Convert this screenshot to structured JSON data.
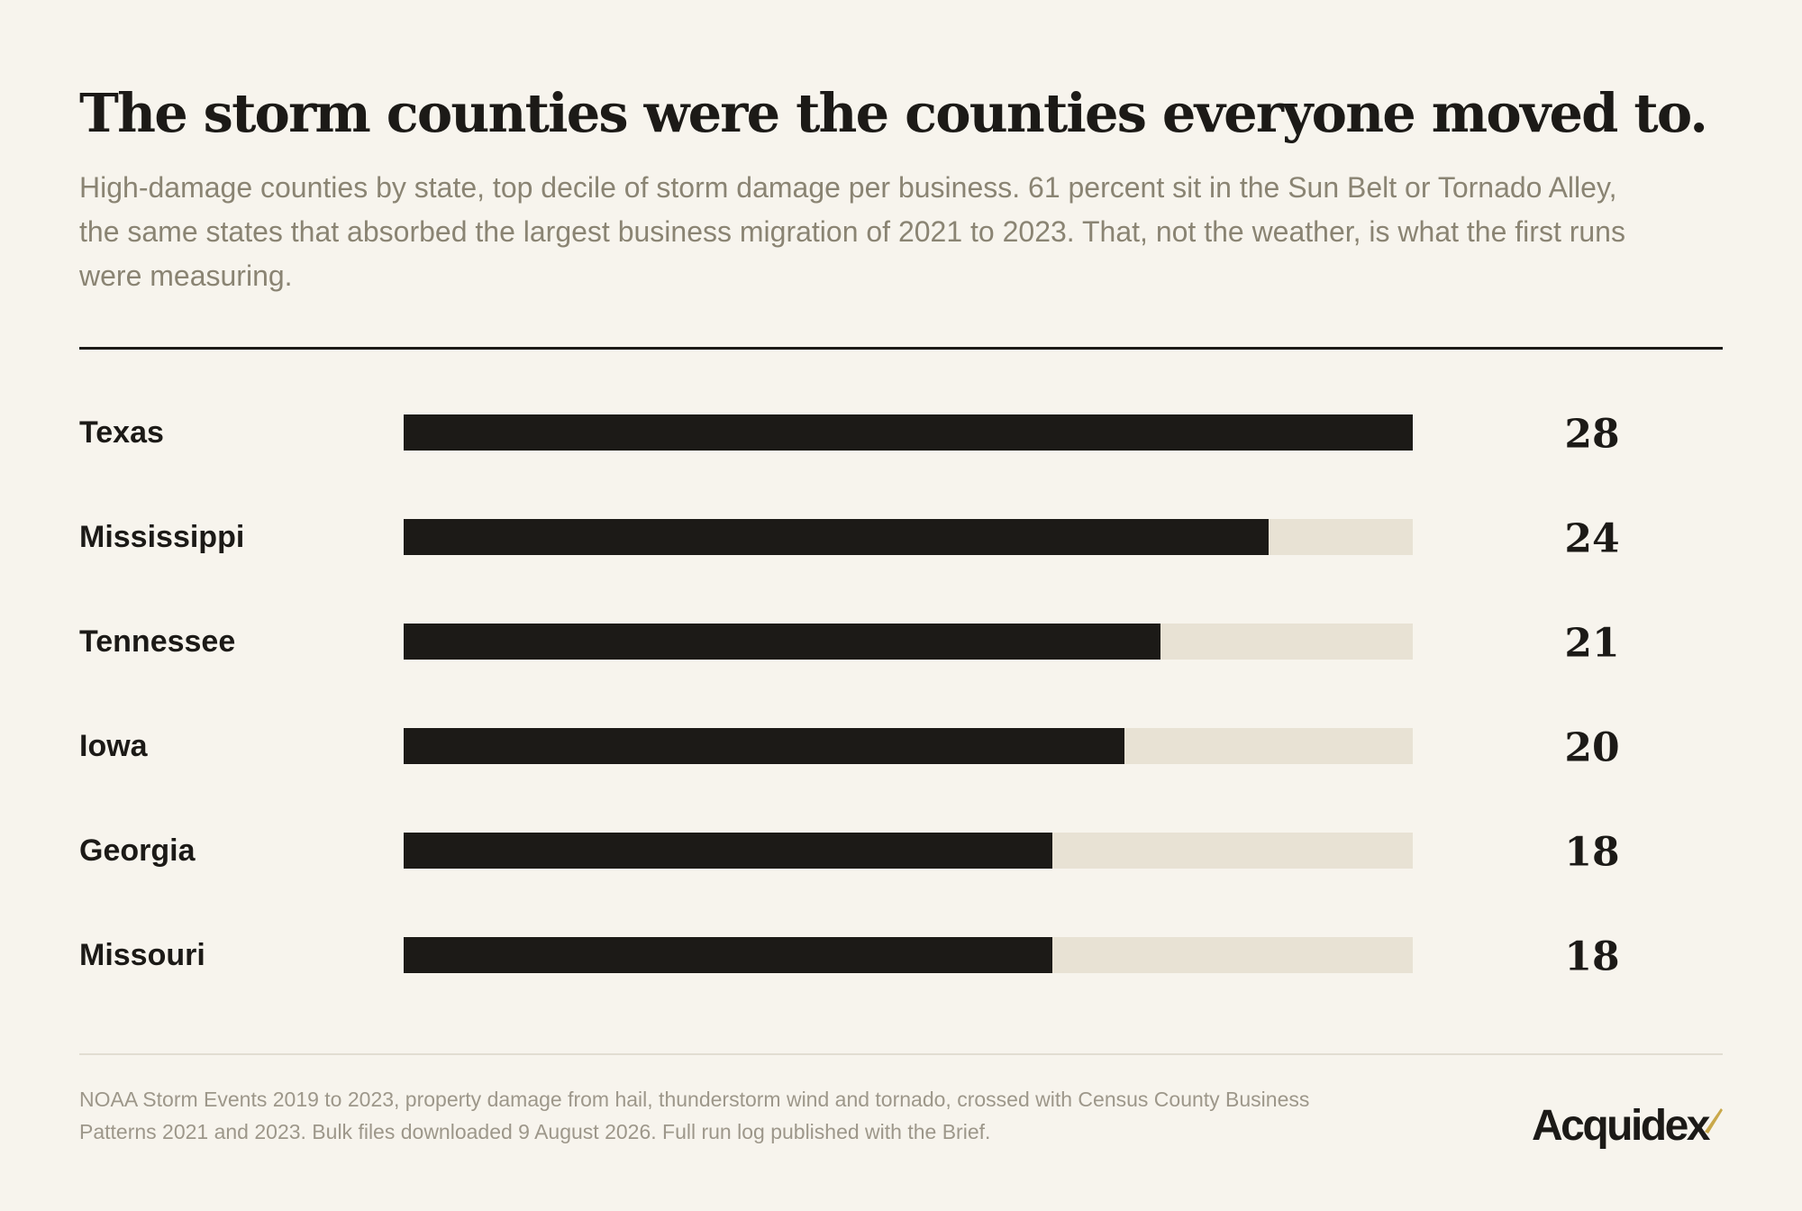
{
  "title": "The storm counties were the counties everyone moved to.",
  "subtitle": "High-damage counties by state, top decile of storm damage per business. 61 percent sit in the Sun Belt or Tornado Alley, the same states that absorbed the largest business migration of 2021 to 2023. That, not the weather, is what the first runs were measuring.",
  "source": "NOAA Storm Events 2019 to 2023, property damage from hail, thunderstorm wind and tornado, crossed with Census County Business Patterns 2021 and 2023. Bulk files downloaded 9 August 2026. Full run log published with the Brief.",
  "brand": {
    "name": "Acquidex",
    "accent_color": "#c9a84a"
  },
  "colors": {
    "background": "#f7f4ed",
    "bar": "#1c1a17",
    "track": "#e8e2d4",
    "subtitle": "#8a8473",
    "source": "#9d978a"
  },
  "chart_data": {
    "type": "bar",
    "orientation": "horizontal",
    "categories": [
      "Texas",
      "Mississippi",
      "Tennessee",
      "Iowa",
      "Georgia",
      "Missouri"
    ],
    "values": [
      28,
      24,
      21,
      20,
      18,
      18
    ],
    "value_labels": [
      "28",
      "24",
      "21",
      "20",
      "18",
      "18"
    ],
    "xlim": [
      0,
      28
    ],
    "grid": false,
    "legend": "none"
  }
}
